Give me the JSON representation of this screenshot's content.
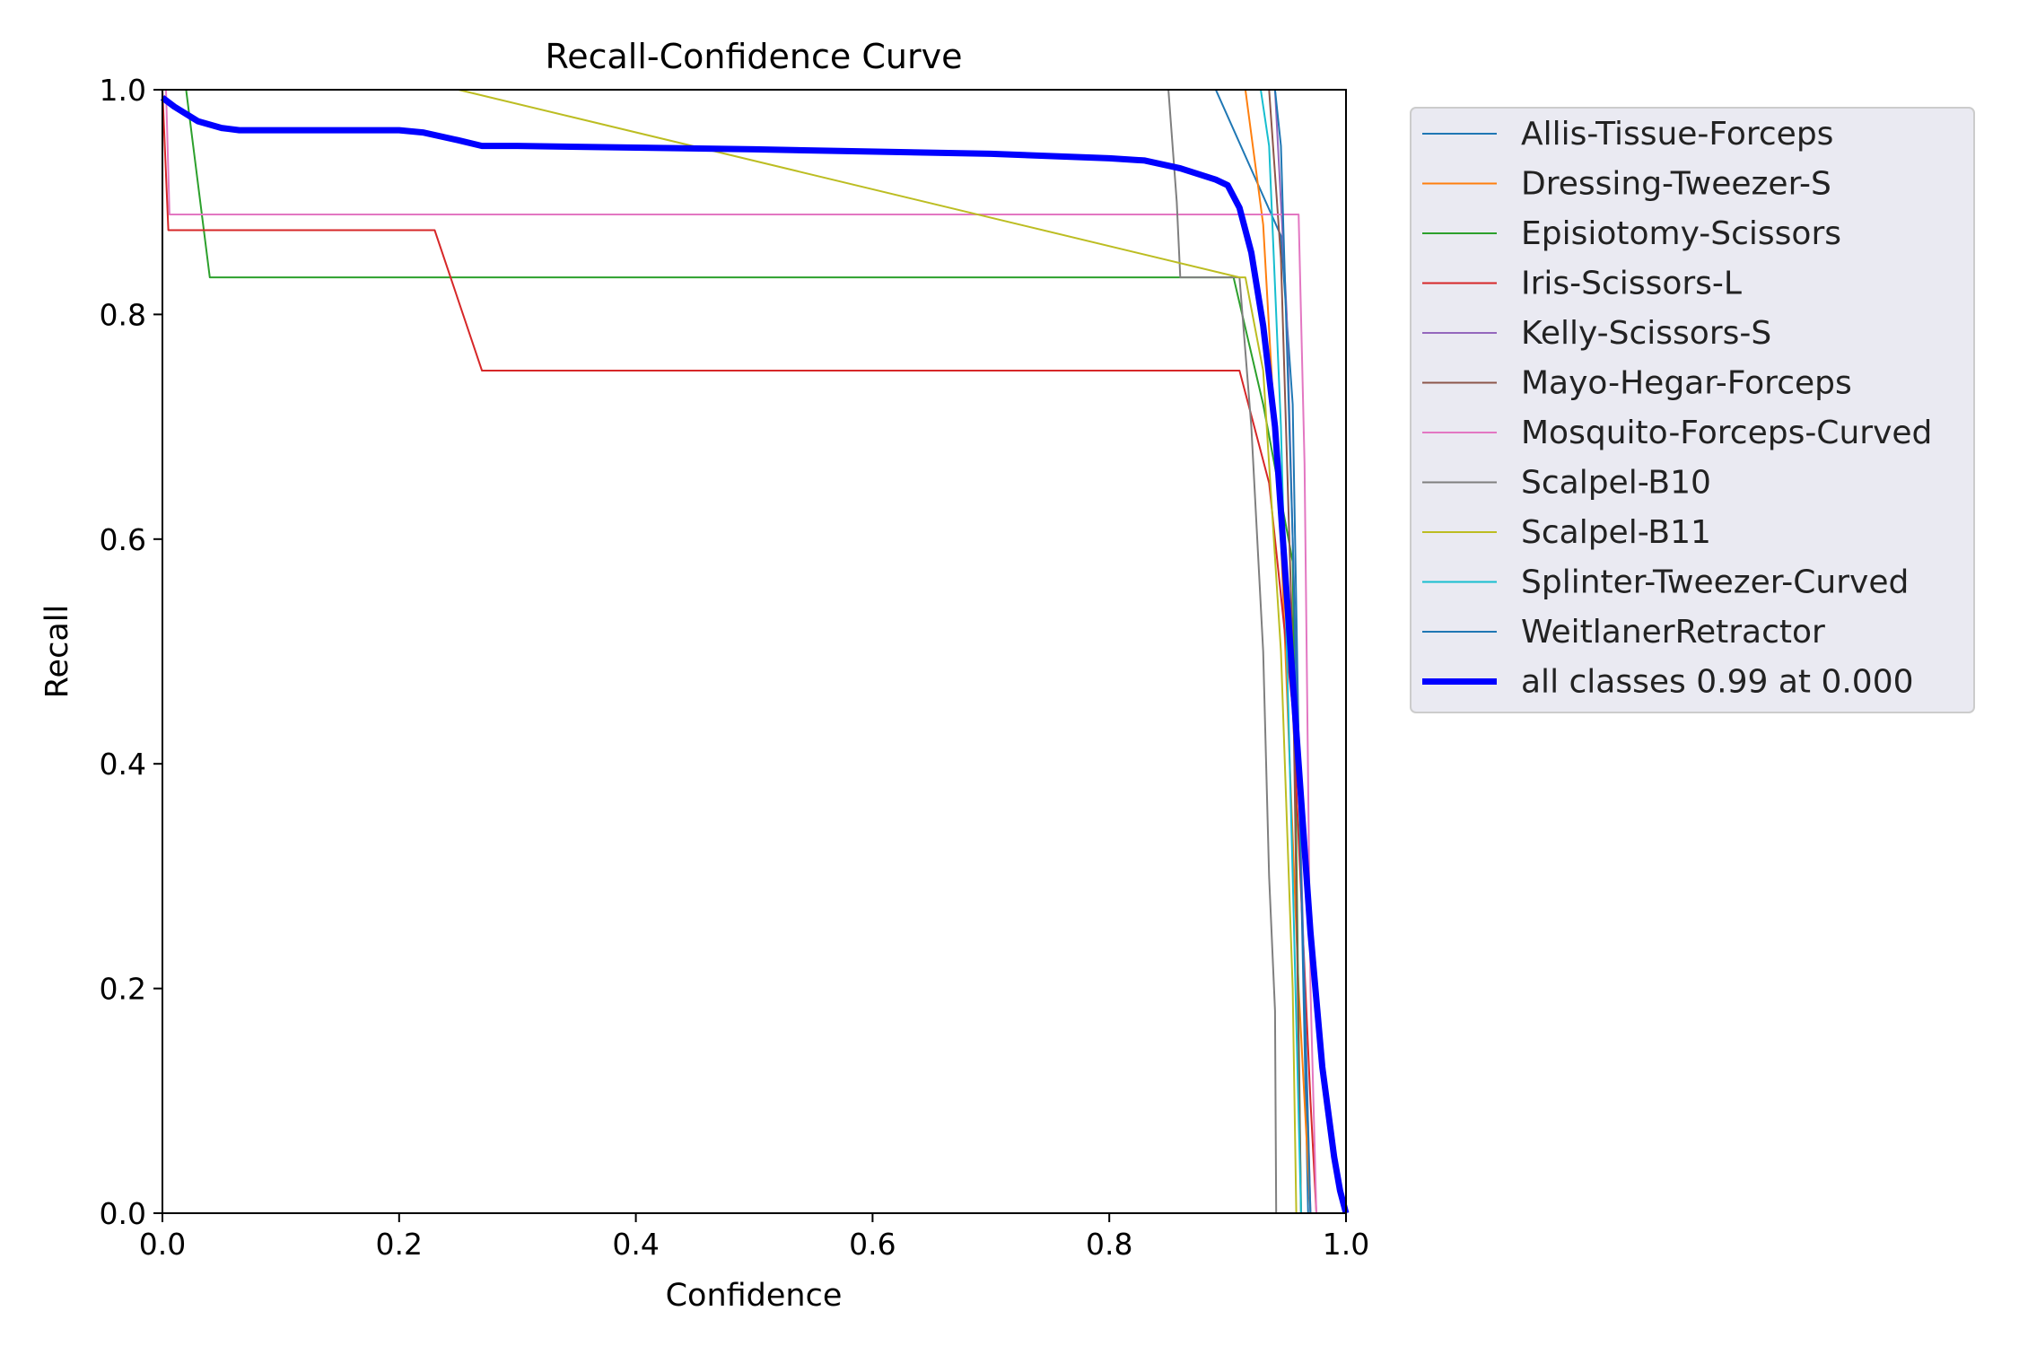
{
  "chart_data": {
    "type": "line",
    "title": "Recall-Confidence Curve",
    "xlabel": "Confidence",
    "ylabel": "Recall",
    "xlim": [
      0.0,
      1.0
    ],
    "ylim": [
      0.0,
      1.0
    ],
    "xticks": [
      "0.0",
      "0.2",
      "0.4",
      "0.6",
      "0.8",
      "1.0"
    ],
    "yticks": [
      "0.0",
      "0.2",
      "0.4",
      "0.6",
      "0.8",
      "1.0"
    ],
    "grid": false,
    "legend_position": "outside-right-top",
    "series": [
      {
        "name": "Allis-Tissue-Forceps",
        "color": "#1f77b4",
        "width": 2,
        "x": [
          0.89,
          0.945,
          0.955,
          0.962,
          0.968
        ],
        "y": [
          1.0,
          0.87,
          0.72,
          0.3,
          0.0
        ]
      },
      {
        "name": "Dressing-Tweezer-S",
        "color": "#ff7f0e",
        "width": 2,
        "x": [
          0.91,
          0.915,
          0.93,
          0.945,
          0.96,
          0.97
        ],
        "y": [
          1.0,
          1.0,
          0.88,
          0.6,
          0.2,
          0.0
        ]
      },
      {
        "name": "Episiotomy-Scissors",
        "color": "#2ca02c",
        "width": 2,
        "x": [
          0.0,
          0.02,
          0.04,
          0.89,
          0.905,
          0.93,
          0.955,
          0.962
        ],
        "y": [
          1.0,
          1.0,
          0.833,
          0.833,
          0.833,
          0.72,
          0.58,
          0.0
        ]
      },
      {
        "name": "Iris-Scissors-L",
        "color": "#d62728",
        "width": 2,
        "x": [
          0.0,
          0.005,
          0.23,
          0.27,
          0.91,
          0.935,
          0.955,
          0.97,
          0.975
        ],
        "y": [
          1.0,
          0.875,
          0.875,
          0.75,
          0.75,
          0.65,
          0.45,
          0.1,
          0.0
        ]
      },
      {
        "name": "Kelly-Scissors-S",
        "color": "#9467bd",
        "width": 2,
        "x": [
          0.935,
          0.94,
          0.95,
          0.96,
          0.97
        ],
        "y": [
          1.0,
          1.0,
          0.8,
          0.4,
          0.0
        ]
      },
      {
        "name": "Mayo-Hegar-Forceps",
        "color": "#8c564b",
        "width": 2,
        "x": [
          0.935,
          0.945,
          0.955,
          0.962
        ],
        "y": [
          1.0,
          0.85,
          0.5,
          0.0
        ]
      },
      {
        "name": "Mosquito-Forceps-Curved",
        "color": "#e377c2",
        "width": 2,
        "x": [
          0.0,
          0.003,
          0.006,
          0.955,
          0.96,
          0.965,
          0.97,
          0.975
        ],
        "y": [
          1.0,
          1.0,
          0.889,
          0.889,
          0.889,
          0.667,
          0.2,
          0.0
        ]
      },
      {
        "name": "Scalpel-B10",
        "color": "#7f7f7f",
        "width": 2,
        "x": [
          0.85,
          0.857,
          0.86,
          0.9,
          0.91,
          0.92,
          0.93,
          0.935,
          0.94,
          0.941
        ],
        "y": [
          1.0,
          0.9,
          0.833,
          0.833,
          0.833,
          0.7,
          0.5,
          0.3,
          0.18,
          0.0
        ]
      },
      {
        "name": "Scalpel-B11",
        "color": "#bcbd22",
        "width": 2,
        "x": [
          0.25,
          0.91,
          0.915,
          0.93,
          0.945,
          0.955,
          0.958
        ],
        "y": [
          1.0,
          0.833,
          0.833,
          0.75,
          0.5,
          0.2,
          0.0
        ]
      },
      {
        "name": "Splinter-Tweezer-Curved",
        "color": "#17becf",
        "width": 2,
        "x": [
          0.928,
          0.935,
          0.945,
          0.955,
          0.962
        ],
        "y": [
          1.0,
          0.95,
          0.7,
          0.3,
          0.0
        ]
      },
      {
        "name": "WeitlanerRetractor",
        "color": "#1f77b4",
        "width": 2,
        "x": [
          0.94,
          0.945,
          0.955,
          0.962,
          0.97
        ],
        "y": [
          1.0,
          0.95,
          0.6,
          0.3,
          0.0
        ]
      },
      {
        "name": "all classes 0.99 at 0.000",
        "color": "#0000ff",
        "width": 7,
        "x": [
          0.0,
          0.01,
          0.03,
          0.05,
          0.065,
          0.1,
          0.2,
          0.22,
          0.25,
          0.27,
          0.3,
          0.5,
          0.7,
          0.8,
          0.83,
          0.86,
          0.89,
          0.9,
          0.91,
          0.92,
          0.93,
          0.94,
          0.95,
          0.96,
          0.97,
          0.98,
          0.99,
          0.995,
          1.0
        ],
        "y": [
          0.993,
          0.985,
          0.972,
          0.966,
          0.964,
          0.964,
          0.964,
          0.962,
          0.955,
          0.95,
          0.95,
          0.947,
          0.943,
          0.939,
          0.937,
          0.93,
          0.92,
          0.915,
          0.895,
          0.855,
          0.79,
          0.7,
          0.55,
          0.4,
          0.25,
          0.13,
          0.05,
          0.02,
          0.0
        ]
      }
    ]
  }
}
